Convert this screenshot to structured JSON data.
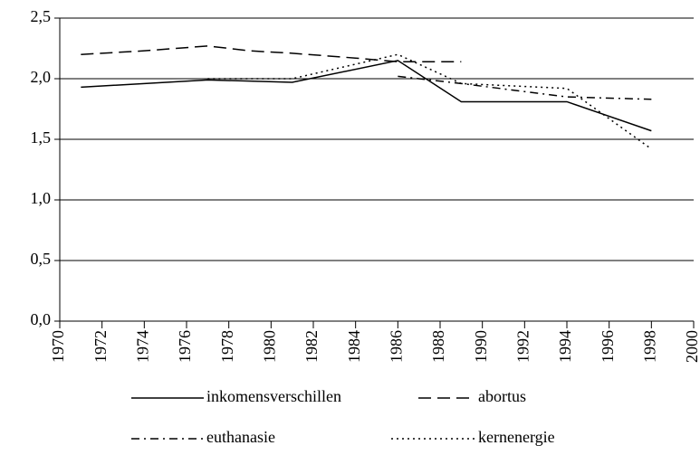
{
  "chart_data": {
    "type": "line",
    "xlim": [
      1970,
      2000
    ],
    "xticks": [
      1970,
      1972,
      1974,
      1976,
      1978,
      1980,
      1982,
      1984,
      1986,
      1988,
      1990,
      1992,
      1994,
      1996,
      1998,
      2000
    ],
    "ylim": [
      0,
      2.5
    ],
    "yticks": [
      {
        "value": 0,
        "label": "0,0"
      },
      {
        "value": 0.5,
        "label": "0,5"
      },
      {
        "value": 1,
        "label": "1,0"
      },
      {
        "value": 1.5,
        "label": "1,5"
      },
      {
        "value": 2,
        "label": "2,0"
      },
      {
        "value": 2.5,
        "label": "2,5"
      }
    ],
    "grid": true,
    "legend": "bottom",
    "series": [
      {
        "name": "inkomensverschillen",
        "color": "#000000",
        "dash": "none",
        "x": [
          1971,
          1977,
          1981,
          1986,
          1989,
          1994,
          1998
        ],
        "values": [
          1.93,
          1.99,
          1.97,
          2.15,
          1.81,
          1.81,
          1.57
        ]
      },
      {
        "name": "abortus",
        "color": "#000000",
        "dash": "14,7",
        "x": [
          1971,
          1974,
          1977,
          1979,
          1981,
          1984,
          1986,
          1989
        ],
        "values": [
          2.2,
          2.23,
          2.27,
          2.23,
          2.21,
          2.17,
          2.14,
          2.14
        ]
      },
      {
        "name": "euthanasie",
        "color": "#000000",
        "dash": "9,5,2,5",
        "x": [
          1986,
          1989,
          1994,
          1998
        ],
        "values": [
          2.02,
          1.96,
          1.85,
          1.83
        ]
      },
      {
        "name": "kernenergie",
        "color": "#000000",
        "dash": "2,4",
        "x": [
          1977,
          1981,
          1986,
          1989,
          1994,
          1998
        ],
        "values": [
          2.0,
          2.0,
          2.2,
          1.96,
          1.92,
          1.42
        ]
      }
    ]
  }
}
